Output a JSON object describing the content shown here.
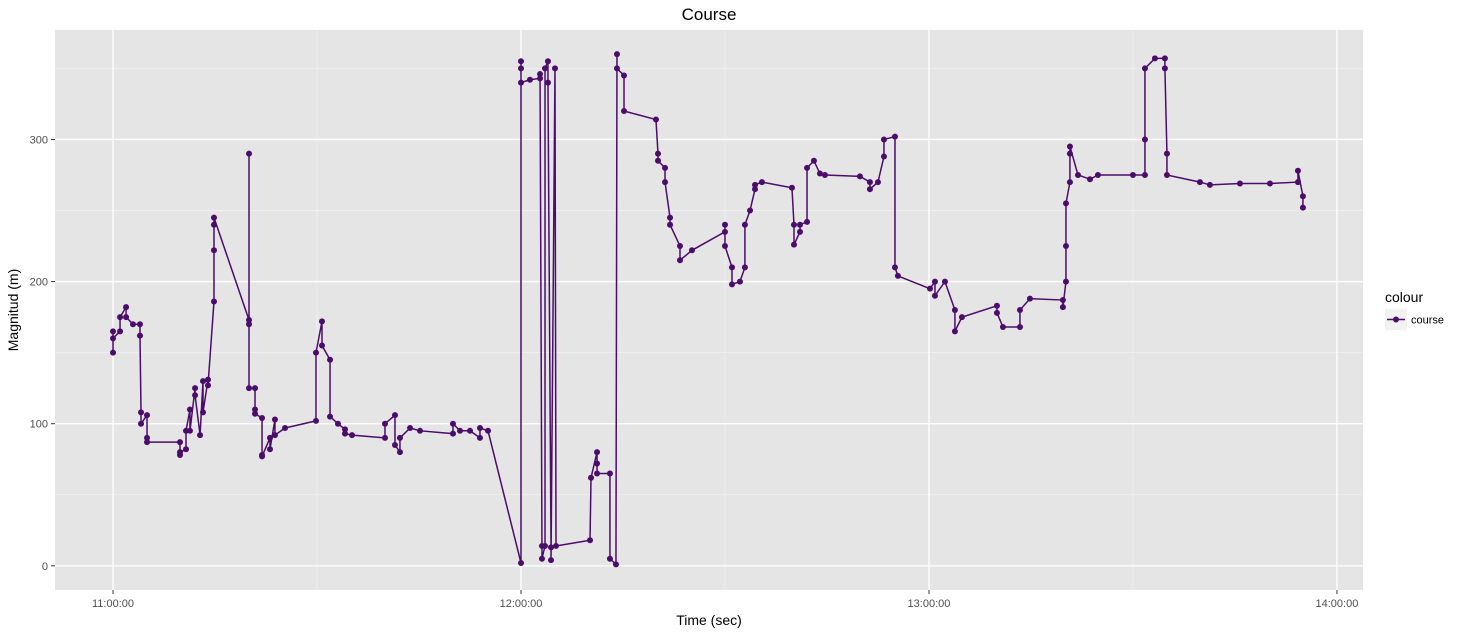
{
  "chart_data": {
    "type": "line",
    "title": "Course",
    "x_label": "Time (sec)",
    "y_label": "Magnitud (m)",
    "legend_title": "colour",
    "legend_position": "right",
    "grid": true,
    "xlim": [
      "10:51:28",
      "14:03:50"
    ],
    "xticks": [
      "11:00:00",
      "12:00:00",
      "13:00:00",
      "14:00:00"
    ],
    "ylim": [
      -17,
      377
    ],
    "yticks": [
      0,
      100,
      200,
      300
    ],
    "x": [
      "11:00:00",
      "11:00:00",
      "11:00:00",
      "11:01:02",
      "11:01:02",
      "11:01:55",
      "11:01:55",
      "11:02:56",
      "11:03:58",
      "11:03:58",
      "11:04:07",
      "11:04:07",
      "11:05:00",
      "11:05:00",
      "11:05:00",
      "11:09:51",
      "11:09:51",
      "11:09:51",
      "11:10:44",
      "11:10:44",
      "11:11:19",
      "11:11:19",
      "11:12:04",
      "11:12:04",
      "11:12:48",
      "11:13:14",
      "11:13:14",
      "11:13:58",
      "11:13:58",
      "11:14:51",
      "11:14:51",
      "11:14:51",
      "11:14:51",
      "11:20:00",
      "11:20:00",
      "11:20:00",
      "11:20:00",
      "11:20:53",
      "11:20:53",
      "11:20:53",
      "11:21:55",
      "11:21:55",
      "11:21:55",
      "11:23:05",
      "11:23:05",
      "11:23:49",
      "11:23:49",
      "11:25:18",
      "11:29:51",
      "11:29:51",
      "11:30:44",
      "11:30:44",
      "11:31:55",
      "11:31:55",
      "11:33:05",
      "11:34:07",
      "11:34:07",
      "11:35:09",
      "11:40:00",
      "11:40:00",
      "11:41:28",
      "11:41:28",
      "11:42:12",
      "11:42:12",
      "11:43:41",
      "11:45:09",
      "11:50:00",
      "11:50:00",
      "11:51:02",
      "11:52:30",
      "11:53:58",
      "11:53:58",
      "11:55:09",
      "12:00:00",
      "12:00:00",
      "12:00:00",
      "12:00:00",
      "12:01:19",
      "12:02:48",
      "12:02:48",
      "12:03:05",
      "12:03:05",
      "12:03:32",
      "12:03:32",
      "12:03:58",
      "12:03:58",
      "12:04:25",
      "12:04:25",
      "12:05:00",
      "12:05:09",
      "12:10:09",
      "12:10:18",
      "12:11:11",
      "12:11:11",
      "12:11:11",
      "12:13:05",
      "12:13:05",
      "12:13:58",
      "12:14:07",
      "12:14:07",
      "12:15:09",
      "12:15:09",
      "12:19:51",
      "12:20:09",
      "12:20:09",
      "12:21:11",
      "12:21:11",
      "12:21:55",
      "12:21:55",
      "12:23:23",
      "12:23:23",
      "12:25:09",
      "12:30:00",
      "12:30:00",
      "12:30:00",
      "12:31:02",
      "12:31:02",
      "12:32:12",
      "12:32:56",
      "12:32:56",
      "12:33:41",
      "12:34:25",
      "12:34:25",
      "12:35:26",
      "12:39:51",
      "12:40:09",
      "12:40:09",
      "12:41:02",
      "12:41:02",
      "12:42:04",
      "12:42:04",
      "12:43:05",
      "12:43:58",
      "12:44:42",
      "12:49:51",
      "12:51:19",
      "12:51:19",
      "12:52:30",
      "12:53:23",
      "12:53:23",
      "12:55:00",
      "12:55:00",
      "12:55:26",
      "13:00:09",
      "13:00:53",
      "13:00:53",
      "13:02:21",
      "13:03:49",
      "13:03:49",
      "13:04:51",
      "13:10:00",
      "13:10:00",
      "13:10:53",
      "13:13:23",
      "13:13:23",
      "13:14:51",
      "13:19:42",
      "13:19:42",
      "13:20:09",
      "13:20:09",
      "13:20:09",
      "13:20:44",
      "13:20:44",
      "13:20:44",
      "13:21:55",
      "13:23:41",
      "13:24:51",
      "13:30:00",
      "13:31:46",
      "13:31:46",
      "13:31:46",
      "13:33:14",
      "13:34:42",
      "13:34:42",
      "13:35:00",
      "13:35:00",
      "13:39:51",
      "13:41:19",
      "13:45:44",
      "13:50:09",
      "13:54:16",
      "13:54:16",
      "13:55:00",
      "13:55:00"
    ],
    "series": [
      {
        "name": "course",
        "color": "#4b0c6b",
        "values": [
          150,
          165,
          160,
          165,
          175,
          182,
          175,
          170,
          170,
          162,
          108,
          100,
          106,
          90,
          87,
          87,
          78,
          80,
          82,
          95,
          110,
          95,
          125,
          120,
          92,
          130,
          108,
          131,
          127,
          186,
          222,
          240,
          245,
          173,
          170,
          290,
          125,
          125,
          110,
          107,
          104,
          78,
          77,
          90,
          82,
          103,
          92,
          97,
          102,
          150,
          172,
          155,
          145,
          105,
          100,
          96,
          93,
          92,
          90,
          100,
          106,
          85,
          80,
          90,
          97,
          95,
          93,
          100,
          95,
          95,
          90,
          97,
          95,
          2,
          350,
          355,
          340,
          342,
          343,
          346,
          14,
          5,
          14,
          350,
          355,
          340,
          13,
          4,
          350,
          14,
          18,
          62,
          80,
          72,
          65,
          65,
          5,
          1,
          360,
          350,
          345,
          320,
          314,
          290,
          285,
          280,
          270,
          245,
          240,
          225,
          215,
          222,
          235,
          240,
          225,
          210,
          198,
          200,
          210,
          240,
          250,
          265,
          268,
          270,
          266,
          240,
          226,
          235,
          240,
          242,
          280,
          285,
          276,
          275,
          274,
          270,
          265,
          270,
          288,
          300,
          302,
          210,
          204,
          195,
          200,
          190,
          200,
          180,
          165,
          175,
          183,
          178,
          168,
          168,
          180,
          188,
          187,
          182,
          200,
          225,
          255,
          270,
          290,
          295,
          275,
          272,
          275,
          275,
          275,
          300,
          350,
          357,
          357,
          350,
          290,
          275,
          270,
          268,
          269,
          269,
          270,
          278,
          260,
          252
        ]
      }
    ]
  }
}
